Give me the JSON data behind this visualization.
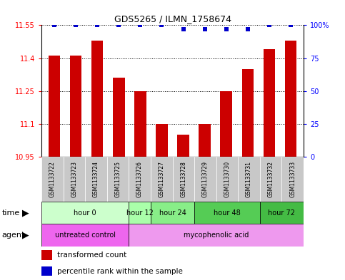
{
  "title": "GDS5265 / ILMN_1758674",
  "samples": [
    "GSM1133722",
    "GSM1133723",
    "GSM1133724",
    "GSM1133725",
    "GSM1133726",
    "GSM1133727",
    "GSM1133728",
    "GSM1133729",
    "GSM1133730",
    "GSM1133731",
    "GSM1133732",
    "GSM1133733"
  ],
  "bar_values": [
    11.41,
    11.41,
    11.48,
    11.31,
    11.25,
    11.1,
    11.05,
    11.1,
    11.25,
    11.35,
    11.44,
    11.48
  ],
  "percentile_values": [
    100,
    100,
    100,
    100,
    100,
    100,
    97,
    97,
    97,
    97,
    100,
    100
  ],
  "bar_color": "#cc0000",
  "percentile_color": "#0000cc",
  "ymin": 10.95,
  "ymax": 11.55,
  "yticks": [
    10.95,
    11.1,
    11.25,
    11.4,
    11.55
  ],
  "ytick_labels": [
    "10.95",
    "11.1",
    "11.25",
    "11.4",
    "11.55"
  ],
  "right_yticks": [
    0,
    25,
    50,
    75,
    100
  ],
  "right_ytick_labels": [
    "0",
    "25",
    "50",
    "75",
    "100%"
  ],
  "time_groups": [
    {
      "label": "hour 0",
      "start": 0,
      "end": 3,
      "color": "#ccffcc"
    },
    {
      "label": "hour 12",
      "start": 4,
      "end": 4,
      "color": "#aaffaa"
    },
    {
      "label": "hour 24",
      "start": 5,
      "end": 6,
      "color": "#88ee88"
    },
    {
      "label": "hour 48",
      "start": 7,
      "end": 9,
      "color": "#55cc55"
    },
    {
      "label": "hour 72",
      "start": 10,
      "end": 11,
      "color": "#44bb44"
    }
  ],
  "agent_groups": [
    {
      "label": "untreated control",
      "start": 0,
      "end": 3,
      "color": "#ee66ee"
    },
    {
      "label": "mycophenolic acid",
      "start": 4,
      "end": 11,
      "color": "#ee99ee"
    }
  ],
  "legend_bar_label": "transformed count",
  "legend_dot_label": "percentile rank within the sample",
  "bg": "#ffffff",
  "label_bg": "#c8c8c8",
  "bar_width": 0.55,
  "figsize": [
    4.83,
    3.93
  ],
  "dpi": 100
}
